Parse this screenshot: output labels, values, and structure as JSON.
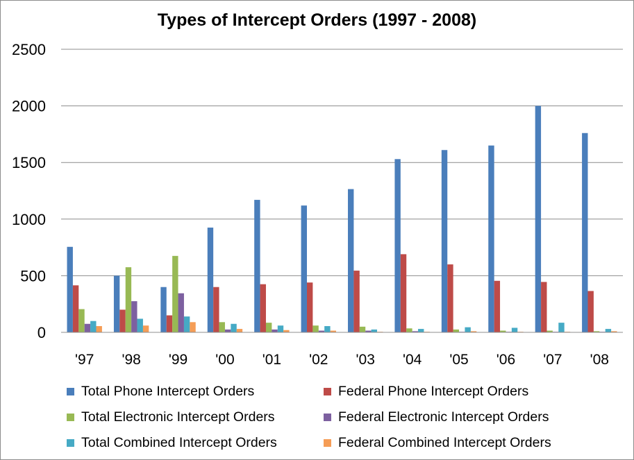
{
  "chart_data": {
    "type": "bar",
    "title": "Types of Intercept Orders (1997 - 2008)",
    "xlabel": "",
    "ylabel": "",
    "ylim": [
      0,
      2500
    ],
    "yticks": [
      0,
      500,
      1000,
      1500,
      2000,
      2500
    ],
    "grid": true,
    "legend_position": "bottom",
    "categories": [
      "'97",
      "'98",
      "'99",
      "'00",
      "'01",
      "'02",
      "'03",
      "'04",
      "'05",
      "'06",
      "'07",
      "'08"
    ],
    "series": [
      {
        "name": "Total Phone Intercept Orders",
        "color": "#4a7ebb",
        "values": [
          755,
          500,
          400,
          925,
          1170,
          1120,
          1265,
          1530,
          1610,
          1650,
          2000,
          1760
        ]
      },
      {
        "name": "Federal Phone Intercept Orders",
        "color": "#be4b48",
        "values": [
          415,
          200,
          150,
          400,
          425,
          440,
          545,
          690,
          600,
          455,
          445,
          365
        ]
      },
      {
        "name": "Total Electronic Intercept Orders",
        "color": "#98b954",
        "values": [
          205,
          575,
          675,
          90,
          85,
          60,
          50,
          35,
          25,
          15,
          15,
          10
        ]
      },
      {
        "name": "Federal Electronic Intercept Orders",
        "color": "#7d60a0",
        "values": [
          75,
          275,
          345,
          25,
          25,
          15,
          15,
          10,
          5,
          5,
          5,
          5
        ]
      },
      {
        "name": "Total Combined Intercept Orders",
        "color": "#46aac5",
        "values": [
          100,
          120,
          140,
          75,
          60,
          55,
          25,
          30,
          45,
          40,
          85,
          30
        ]
      },
      {
        "name": "Federal Combined Intercept Orders",
        "color": "#f59d56",
        "values": [
          55,
          60,
          90,
          30,
          20,
          15,
          5,
          5,
          10,
          5,
          5,
          10
        ]
      }
    ]
  }
}
